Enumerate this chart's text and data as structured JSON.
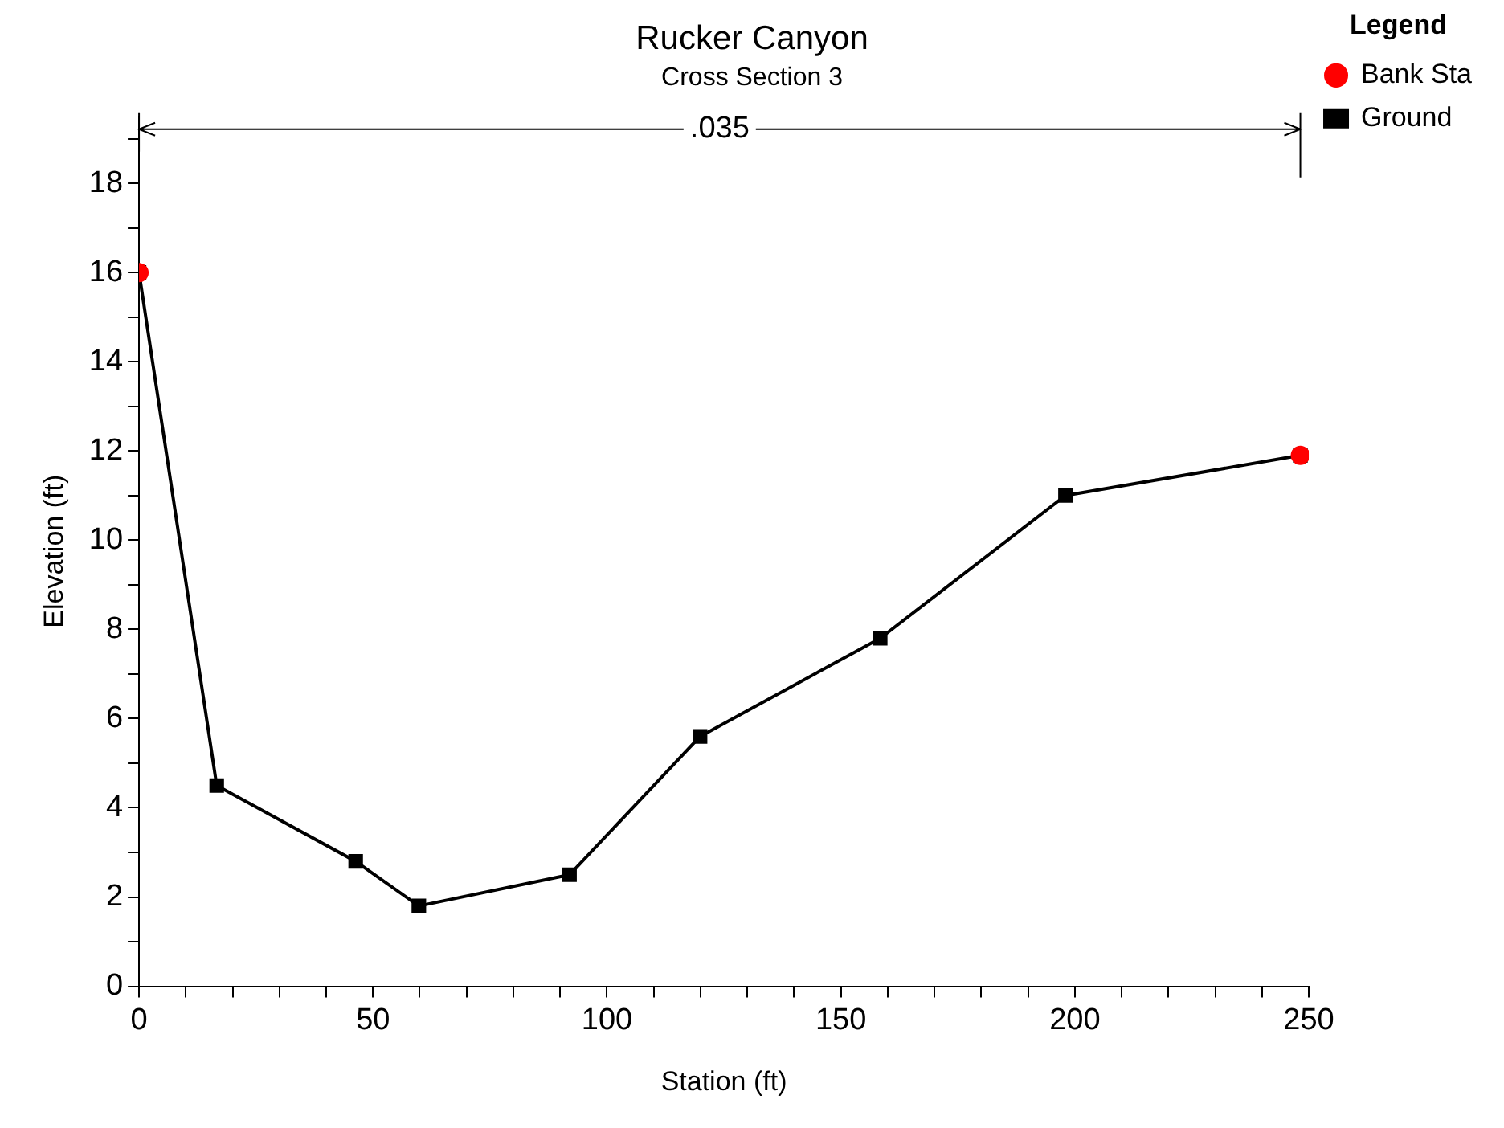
{
  "chart_data": {
    "type": "line",
    "title": "Rucker Canyon",
    "subtitle": "Cross Section 3",
    "xlabel": "Station (ft)",
    "ylabel": "Elevation (ft)",
    "legend_title": "Legend",
    "xlim": [
      0,
      250
    ],
    "ylim": [
      0,
      19.5
    ],
    "xticks": [
      0,
      {
        "value": 10,
        "label": null
      },
      {
        "value": 20,
        "label": null
      },
      {
        "value": 30,
        "label": null
      },
      {
        "value": 40,
        "label": null
      },
      50,
      {
        "value": 60,
        "label": null
      },
      {
        "value": 70,
        "label": null
      },
      {
        "value": 80,
        "label": null
      },
      {
        "value": 90,
        "label": null
      },
      100,
      {
        "value": 110,
        "label": null
      },
      {
        "value": 120,
        "label": null
      },
      {
        "value": 130,
        "label": null
      },
      {
        "value": 140,
        "label": null
      },
      150,
      {
        "value": 160,
        "label": null
      },
      {
        "value": 170,
        "label": null
      },
      {
        "value": 180,
        "label": null
      },
      {
        "value": 190,
        "label": null
      },
      200,
      {
        "value": 210,
        "label": null
      },
      {
        "value": 220,
        "label": null
      },
      {
        "value": 230,
        "label": null
      },
      {
        "value": 240,
        "label": null
      },
      250
    ],
    "yticks": [
      0,
      {
        "value": 1,
        "label": null
      },
      2,
      {
        "value": 3,
        "label": null
      },
      4,
      {
        "value": 5,
        "label": null
      },
      6,
      {
        "value": 7,
        "label": null
      },
      8,
      {
        "value": 9,
        "label": null
      },
      10,
      {
        "value": 11,
        "label": null
      },
      12,
      {
        "value": 13,
        "label": null
      },
      14,
      {
        "value": 15,
        "label": null
      },
      16,
      {
        "value": 17,
        "label": null
      },
      18,
      {
        "value": 19,
        "label": null
      }
    ],
    "grid": false,
    "legend": "right",
    "annotations": [
      ".035"
    ],
    "series": [
      {
        "name": "Ground",
        "color": "#000000",
        "marker": "square",
        "line_style": "solid",
        "x": [
          0,
          16.6,
          46.3,
          59.8,
          92,
          119.9,
          158.4,
          198,
          248.2
        ],
        "values": [
          16,
          4.5,
          2.8,
          1.8,
          2.5,
          5.6,
          7.8,
          11,
          11.9
        ]
      },
      {
        "name": "Bank Sta",
        "type": "scatter",
        "color": "#ff0000",
        "marker": "circle",
        "x": [
          0,
          248.2
        ],
        "values": [
          16,
          11.9
        ]
      }
    ]
  }
}
